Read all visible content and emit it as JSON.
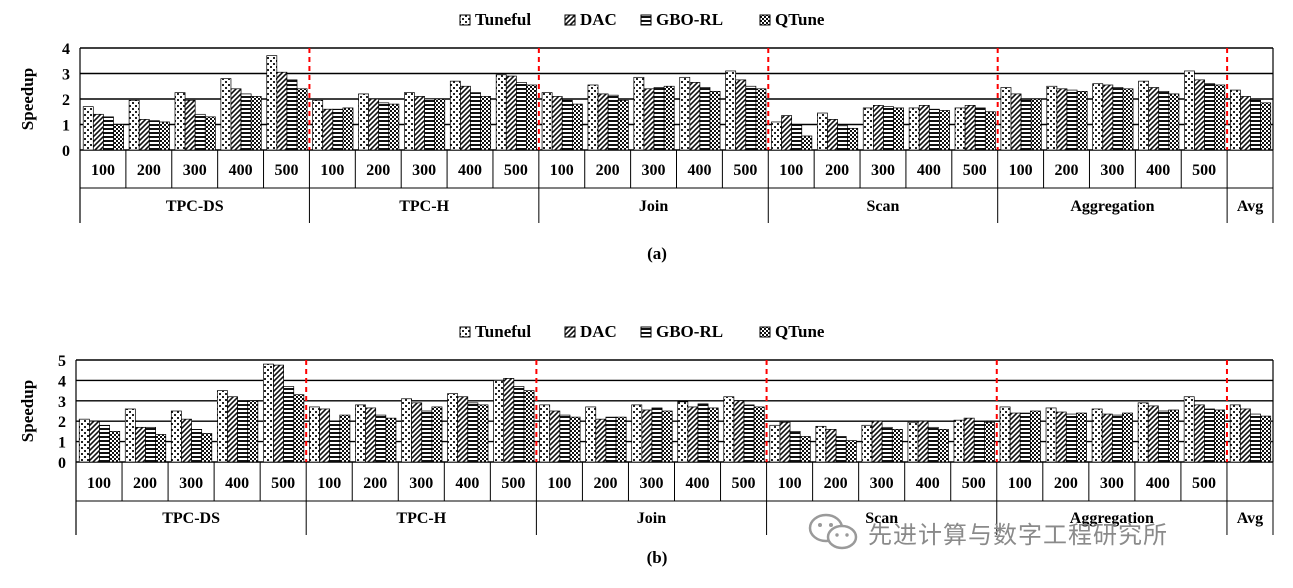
{
  "chart_data": [
    {
      "type": "bar",
      "panel_label": "(a)",
      "ylabel": "Speedup",
      "ylim": [
        0,
        4
      ],
      "yticks": [
        "0",
        "1",
        "2",
        "3",
        "4"
      ],
      "grid": true,
      "legend_position": "top-center",
      "series_names": [
        "Tuneful",
        "DAC",
        "GBO-RL",
        "QTune"
      ],
      "groups": [
        {
          "label": "TPC-DS",
          "categories": [
            "100",
            "200",
            "300",
            "400",
            "500"
          ],
          "values": [
            [
              1.7,
              1.4,
              1.3,
              1.0
            ],
            [
              1.95,
              1.2,
              1.15,
              1.1
            ],
            [
              2.25,
              1.95,
              1.4,
              1.3
            ],
            [
              2.8,
              2.4,
              2.2,
              2.1
            ],
            [
              3.7,
              3.05,
              2.75,
              2.4
            ]
          ]
        },
        {
          "label": "TPC-H",
          "categories": [
            "100",
            "200",
            "300",
            "400",
            "500"
          ],
          "values": [
            [
              1.95,
              1.6,
              1.6,
              1.65
            ],
            [
              2.2,
              2.0,
              1.85,
              1.8
            ],
            [
              2.25,
              2.1,
              2.0,
              2.0
            ],
            [
              2.7,
              2.5,
              2.25,
              2.1
            ],
            [
              2.95,
              2.9,
              2.65,
              2.55
            ]
          ]
        },
        {
          "label": "Join",
          "categories": [
            "100",
            "200",
            "300",
            "400",
            "500"
          ],
          "values": [
            [
              2.25,
              2.1,
              1.95,
              1.8
            ],
            [
              2.55,
              2.2,
              2.15,
              1.95
            ],
            [
              2.85,
              2.4,
              2.45,
              2.5
            ],
            [
              2.85,
              2.65,
              2.45,
              2.3
            ],
            [
              3.1,
              2.75,
              2.5,
              2.4
            ]
          ]
        },
        {
          "label": "Scan",
          "categories": [
            "100",
            "200",
            "300",
            "400",
            "500"
          ],
          "values": [
            [
              1.1,
              1.35,
              1.0,
              0.55
            ],
            [
              1.45,
              1.2,
              0.95,
              0.85
            ],
            [
              1.65,
              1.75,
              1.7,
              1.65
            ],
            [
              1.65,
              1.75,
              1.6,
              1.55
            ],
            [
              1.65,
              1.75,
              1.65,
              1.5
            ]
          ]
        },
        {
          "label": "Aggregation",
          "categories": [
            "100",
            "200",
            "300",
            "400",
            "500"
          ],
          "values": [
            [
              2.45,
              2.2,
              1.95,
              2.0
            ],
            [
              2.5,
              2.4,
              2.35,
              2.3
            ],
            [
              2.6,
              2.55,
              2.45,
              2.4
            ],
            [
              2.7,
              2.45,
              2.3,
              2.2
            ],
            [
              3.1,
              2.75,
              2.6,
              2.55
            ]
          ]
        },
        {
          "label": "Avg",
          "categories": [
            ""
          ],
          "values": [
            [
              2.35,
              2.1,
              1.95,
              1.85
            ]
          ]
        }
      ]
    },
    {
      "type": "bar",
      "panel_label": "(b)",
      "ylabel": "Speedup",
      "ylim": [
        0,
        5
      ],
      "yticks": [
        "0",
        "1",
        "2",
        "3",
        "4",
        "5"
      ],
      "grid": true,
      "legend_position": "top-center",
      "series_names": [
        "Tuneful",
        "DAC",
        "GBO-RL",
        "QTune"
      ],
      "groups": [
        {
          "label": "TPC-DS",
          "categories": [
            "100",
            "200",
            "300",
            "400",
            "500"
          ],
          "values": [
            [
              2.1,
              2.0,
              1.8,
              1.5
            ],
            [
              2.6,
              1.7,
              1.7,
              1.35
            ],
            [
              2.5,
              2.1,
              1.6,
              1.4
            ],
            [
              3.5,
              3.2,
              3.0,
              3.0
            ],
            [
              4.8,
              4.75,
              3.7,
              3.3
            ]
          ]
        },
        {
          "label": "TPC-H",
          "categories": [
            "100",
            "200",
            "300",
            "400",
            "500"
          ],
          "values": [
            [
              2.7,
              2.6,
              2.0,
              2.3
            ],
            [
              2.8,
              2.65,
              2.3,
              2.15
            ],
            [
              3.1,
              2.9,
              2.5,
              2.7
            ],
            [
              3.35,
              3.2,
              2.9,
              2.8
            ],
            [
              4.0,
              4.1,
              3.7,
              3.5
            ]
          ]
        },
        {
          "label": "Join",
          "categories": [
            "100",
            "200",
            "300",
            "400",
            "500"
          ],
          "values": [
            [
              2.8,
              2.5,
              2.3,
              2.2
            ],
            [
              2.7,
              2.1,
              2.2,
              2.2
            ],
            [
              2.8,
              2.55,
              2.65,
              2.5
            ],
            [
              2.95,
              2.7,
              2.85,
              2.65
            ],
            [
              3.2,
              3.0,
              2.8,
              2.7
            ]
          ]
        },
        {
          "label": "Scan",
          "categories": [
            "100",
            "200",
            "300",
            "400",
            "500"
          ],
          "values": [
            [
              1.8,
              1.95,
              1.5,
              1.25
            ],
            [
              1.75,
              1.6,
              1.25,
              1.05
            ],
            [
              1.8,
              2.0,
              1.7,
              1.6
            ],
            [
              1.95,
              2.0,
              1.7,
              1.6
            ],
            [
              2.05,
              2.15,
              2.0,
              1.95
            ]
          ]
        },
        {
          "label": "Aggregation",
          "categories": [
            "100",
            "200",
            "300",
            "400",
            "500"
          ],
          "values": [
            [
              2.7,
              2.4,
              2.4,
              2.5
            ],
            [
              2.65,
              2.45,
              2.35,
              2.4
            ],
            [
              2.6,
              2.35,
              2.3,
              2.4
            ],
            [
              2.9,
              2.75,
              2.5,
              2.55
            ],
            [
              3.2,
              2.8,
              2.6,
              2.55
            ]
          ]
        },
        {
          "label": "Avg",
          "categories": [
            ""
          ],
          "values": [
            [
              2.8,
              2.6,
              2.35,
              2.25
            ]
          ]
        }
      ]
    }
  ],
  "watermark": {
    "text": "先进计算与数字工程研究所",
    "icon": "wechat-logo-icon"
  }
}
